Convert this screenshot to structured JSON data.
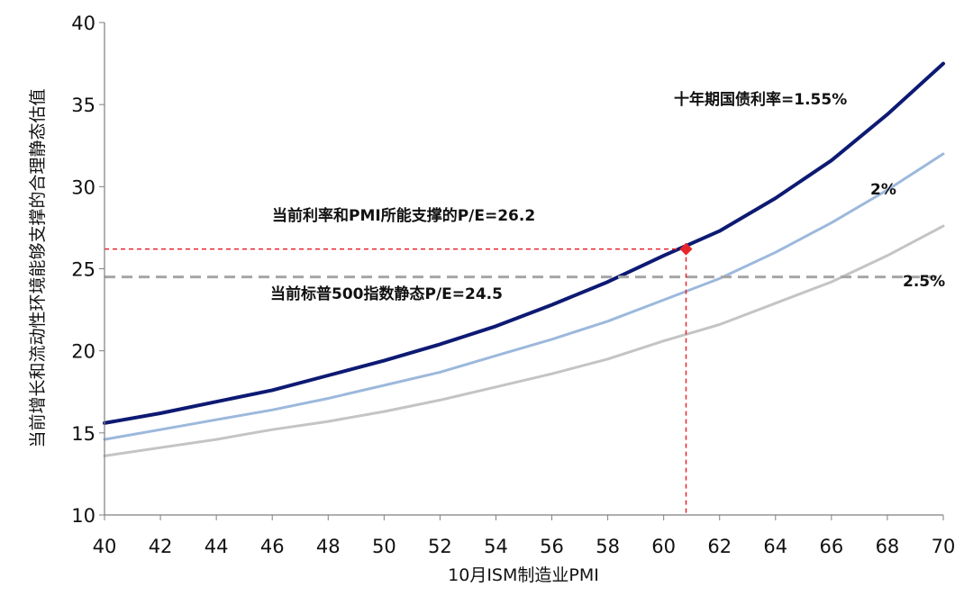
{
  "chart_data": {
    "type": "line",
    "xlabel": "10月ISM制造业PMI",
    "ylabel": "当前增长和流动性环境能够支撑的合理静态估值",
    "xlim": [
      40,
      70
    ],
    "ylim": [
      10,
      40
    ],
    "x_ticks": [
      "40",
      "42",
      "44",
      "46",
      "48",
      "50",
      "52",
      "54",
      "56",
      "58",
      "60",
      "62",
      "64",
      "66",
      "68",
      "70"
    ],
    "y_ticks": [
      "10",
      "15",
      "20",
      "25",
      "30",
      "35",
      "40"
    ],
    "grid": false,
    "series": [
      {
        "name": "十年期国债利率=1.55%",
        "color": "#0d1a73",
        "x": [
          40,
          42,
          44,
          46,
          48,
          50,
          52,
          54,
          56,
          58,
          60,
          62,
          64,
          66,
          68,
          70
        ],
        "y": [
          15.6,
          16.2,
          16.9,
          17.6,
          18.5,
          19.4,
          20.4,
          21.5,
          22.8,
          24.2,
          25.8,
          27.3,
          29.3,
          31.6,
          34.4,
          37.5
        ]
      },
      {
        "name": "2%",
        "color": "#9cb8dc",
        "x": [
          40,
          42,
          44,
          46,
          48,
          50,
          52,
          54,
          56,
          58,
          60,
          62,
          64,
          66,
          68,
          70
        ],
        "y": [
          14.6,
          15.2,
          15.8,
          16.4,
          17.1,
          17.9,
          18.7,
          19.7,
          20.7,
          21.8,
          23.1,
          24.4,
          26.0,
          27.8,
          29.8,
          32.0
        ]
      },
      {
        "name": "2.5%",
        "color": "#c4c4c4",
        "x": [
          40,
          42,
          44,
          46,
          48,
          50,
          52,
          54,
          56,
          58,
          60,
          62,
          64,
          66,
          68,
          70
        ],
        "y": [
          13.6,
          14.1,
          14.6,
          15.2,
          15.7,
          16.3,
          17.0,
          17.8,
          18.6,
          19.5,
          20.6,
          21.6,
          22.9,
          24.2,
          25.8,
          27.6
        ]
      }
    ],
    "reference_lines": {
      "current_pe": {
        "label": "当前利率和PMI所能支撑的P/E=26.2",
        "x": 60.8,
        "y": 26.2,
        "color": "#e8242b"
      },
      "sp500_pe": {
        "label": "当前标普500指数静态P/E=24.5",
        "y": 24.5,
        "color": "#a6a6a6"
      }
    }
  }
}
